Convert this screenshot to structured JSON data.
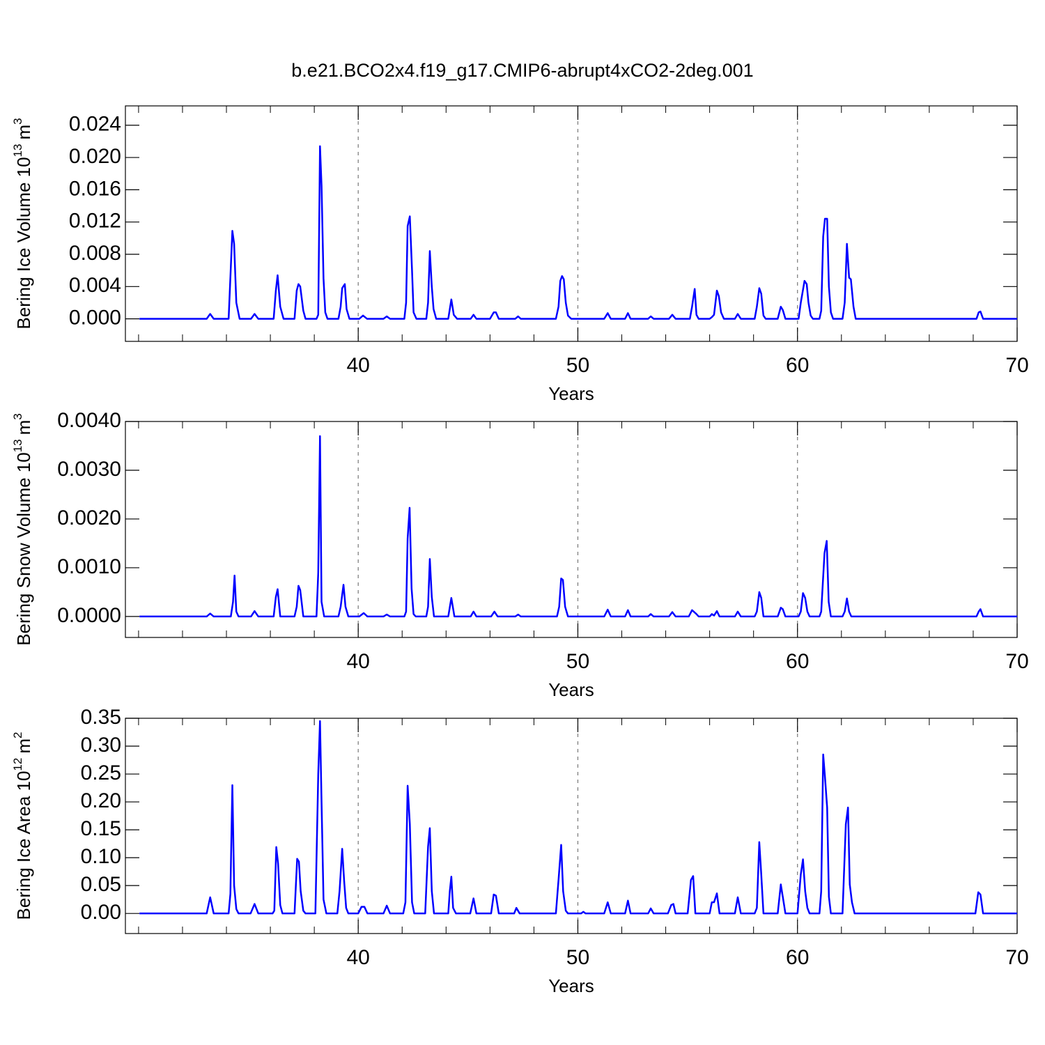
{
  "chart_data": [
    {
      "type": "line",
      "title": "b.e21.BCO2x4.f19_g17.CMIP6-abrupt4xCO2-2deg.001",
      "ylabel_parts": [
        {
          "text": "Bering Ice Volume 10"
        },
        {
          "text": "13",
          "sup": true
        },
        {
          "text": "m"
        },
        {
          "text": "3",
          "sup": true
        }
      ],
      "xlabel": "Years",
      "color": "#0000ff",
      "xgrid": true,
      "xlim": [
        29.4,
        70
      ],
      "xticks": [
        40,
        50,
        60,
        70
      ],
      "xminorticks": [
        30,
        32,
        34,
        36,
        38,
        42,
        44,
        46,
        48,
        52,
        54,
        56,
        58,
        62,
        64,
        66,
        68
      ],
      "ylim": [
        -0.0028,
        0.0264
      ],
      "yticks": [
        {
          "value": 0,
          "label": "0.000"
        },
        {
          "value": 0.004,
          "label": "0.004"
        },
        {
          "value": 0.008,
          "label": "0.008"
        },
        {
          "value": 0.012,
          "label": "0.012"
        },
        {
          "value": 0.016,
          "label": "0.016"
        },
        {
          "value": 0.02,
          "label": "0.020"
        },
        {
          "value": 0.024,
          "label": "0.024"
        }
      ],
      "x": [
        30.04,
        33.1,
        33.26,
        33.42,
        34.1,
        34.27,
        34.35,
        34.45,
        34.6,
        35.12,
        35.28,
        35.45,
        36.15,
        36.25,
        36.33,
        36.45,
        36.6,
        37.1,
        37.2,
        37.28,
        37.36,
        37.5,
        37.6,
        38.1,
        38.18,
        38.26,
        38.33,
        38.42,
        38.5,
        38.6,
        39.1,
        39.2,
        39.27,
        39.39,
        39.47,
        39.6,
        40.05,
        40.22,
        40.4,
        41.15,
        41.3,
        41.45,
        42.1,
        42.18,
        42.25,
        42.35,
        42.45,
        42.52,
        42.65,
        43.1,
        43.18,
        43.26,
        43.35,
        43.43,
        43.55,
        44.1,
        44.24,
        44.35,
        44.5,
        45.12,
        45.25,
        45.38,
        46.0,
        46.17,
        46.27,
        46.4,
        47.15,
        47.28,
        47.4,
        49.0,
        49.12,
        49.2,
        49.28,
        49.36,
        49.45,
        49.55,
        49.7,
        51.2,
        51.36,
        51.5,
        52.15,
        52.28,
        52.4,
        53.2,
        53.32,
        53.45,
        54.15,
        54.3,
        54.45,
        55.1,
        55.2,
        55.32,
        55.4,
        55.5,
        56.0,
        56.1,
        56.2,
        56.33,
        56.42,
        56.52,
        56.65,
        57.15,
        57.28,
        57.42,
        58.05,
        58.15,
        58.26,
        58.35,
        58.45,
        58.55,
        59.1,
        59.24,
        59.33,
        59.45,
        60.05,
        60.15,
        60.32,
        60.42,
        60.5,
        60.6,
        60.7,
        61.0,
        61.08,
        61.17,
        61.25,
        61.35,
        61.43,
        61.52,
        61.62,
        62.05,
        62.15,
        62.25,
        62.35,
        62.43,
        62.55,
        62.65,
        68.15,
        68.25,
        68.33,
        68.45,
        70
      ],
      "values": [
        0,
        0,
        0.0006,
        0,
        0,
        0.0109,
        0.0093,
        0.002,
        0,
        0,
        0.0006,
        0,
        0,
        0.0035,
        0.0054,
        0.0015,
        0,
        0,
        0.0035,
        0.0043,
        0.004,
        0.001,
        0,
        0,
        0.0005,
        0.0214,
        0.0165,
        0.005,
        0.0008,
        0,
        0,
        0.0015,
        0.0038,
        0.0043,
        0.0012,
        0,
        0,
        0.0004,
        0,
        0,
        0.0003,
        0,
        0,
        0.002,
        0.0115,
        0.0127,
        0.006,
        0.0008,
        0,
        0,
        0.002,
        0.0084,
        0.004,
        0.0012,
        0,
        0,
        0.0024,
        0.0005,
        0,
        0,
        0.0005,
        0,
        0,
        0.0008,
        0.0008,
        0,
        0,
        0.0003,
        0,
        0,
        0.0015,
        0.0047,
        0.0053,
        0.0049,
        0.002,
        0.0004,
        0,
        0,
        0.0007,
        0,
        0,
        0.0007,
        0,
        0,
        0.0003,
        0,
        0,
        0.0005,
        0,
        0,
        0.0015,
        0.0037,
        0.0005,
        0,
        0,
        0.0002,
        0.0005,
        0.0035,
        0.0028,
        0.0008,
        0,
        0,
        0.0006,
        0,
        0,
        0.0015,
        0.0038,
        0.0031,
        0.0004,
        0,
        0,
        0.0015,
        0.0011,
        0,
        0,
        0.002,
        0.0047,
        0.0043,
        0.002,
        0.0004,
        0,
        0,
        0.001,
        0.0102,
        0.0124,
        0.0124,
        0.004,
        0.0008,
        0,
        0,
        0.002,
        0.0093,
        0.0051,
        0.0049,
        0.0015,
        0,
        0,
        0.0008,
        0.0009,
        0,
        0
      ]
    },
    {
      "type": "line",
      "ylabel_parts": [
        {
          "text": "Bering Snow Volume 10"
        },
        {
          "text": "13",
          "sup": true
        },
        {
          "text": "m"
        },
        {
          "text": "3",
          "sup": true
        }
      ],
      "xlabel": "Years",
      "color": "#0000ff",
      "xgrid": true,
      "xlim": [
        29.4,
        70
      ],
      "xticks": [
        40,
        50,
        60,
        70
      ],
      "xminorticks": [
        30,
        32,
        34,
        36,
        38,
        42,
        44,
        46,
        48,
        52,
        54,
        56,
        58,
        62,
        64,
        66,
        68
      ],
      "ylim": [
        -0.00043,
        0.004
      ],
      "yticks": [
        {
          "value": 0,
          "label": "0.0000"
        },
        {
          "value": 0.001,
          "label": "0.0010"
        },
        {
          "value": 0.002,
          "label": "0.0020"
        },
        {
          "value": 0.003,
          "label": "0.0030"
        },
        {
          "value": 0.004,
          "label": "0.0040"
        }
      ],
      "x": [
        30.04,
        33.1,
        33.26,
        33.42,
        34.2,
        34.3,
        34.37,
        34.45,
        34.55,
        35.12,
        35.28,
        35.45,
        36.15,
        36.25,
        36.33,
        36.45,
        37.1,
        37.2,
        37.28,
        37.36,
        37.5,
        38.1,
        38.18,
        38.26,
        38.33,
        38.45,
        39.1,
        39.2,
        39.33,
        39.42,
        39.55,
        40.05,
        40.25,
        40.42,
        41.15,
        41.3,
        41.45,
        42.1,
        42.18,
        42.25,
        42.34,
        42.43,
        42.52,
        42.62,
        43.1,
        43.18,
        43.26,
        43.35,
        43.45,
        44.1,
        44.24,
        44.38,
        45.12,
        45.25,
        45.38,
        46.05,
        46.2,
        46.35,
        47.15,
        47.28,
        47.4,
        49.05,
        49.15,
        49.24,
        49.32,
        49.42,
        49.55,
        51.2,
        51.36,
        51.5,
        52.15,
        52.28,
        52.4,
        53.2,
        53.32,
        53.45,
        54.15,
        54.3,
        54.45,
        55.05,
        55.2,
        55.4,
        55.5,
        56.0,
        56.1,
        56.2,
        56.33,
        56.45,
        57.15,
        57.28,
        57.42,
        58.05,
        58.15,
        58.26,
        58.35,
        58.45,
        59.1,
        59.24,
        59.33,
        59.45,
        60.05,
        60.15,
        60.25,
        60.35,
        60.45,
        60.55,
        61.0,
        61.08,
        61.23,
        61.33,
        61.42,
        61.52,
        62.05,
        62.15,
        62.25,
        62.35,
        62.45,
        68.15,
        68.25,
        68.33,
        68.45,
        70
      ],
      "values": [
        0,
        0,
        6e-05,
        0,
        0,
        0.0003,
        0.00084,
        0.0001,
        0,
        0,
        0.00011,
        0,
        0,
        0.0004,
        0.00056,
        0,
        0,
        0.0002,
        0.00063,
        0.00054,
        0,
        0,
        0.0009,
        0.0037,
        0.0003,
        0,
        0,
        0.0002,
        0.00065,
        0.0002,
        0,
        0,
        7e-05,
        0,
        0,
        4e-05,
        0,
        0,
        0.0001,
        0.0016,
        0.00223,
        0.00057,
        5e-05,
        0,
        0,
        0.0002,
        0.00118,
        0.0004,
        0,
        0,
        0.00038,
        0,
        0,
        0.0001,
        0,
        0,
        0.0001,
        0,
        0,
        4e-05,
        0,
        0,
        0.0002,
        0.00078,
        0.00075,
        0.0002,
        0,
        0,
        0.00014,
        0,
        0,
        0.00013,
        0,
        0,
        5e-05,
        0,
        0,
        9e-05,
        0,
        0,
        0.00013,
        5e-05,
        0,
        0,
        5e-05,
        2e-05,
        0.00011,
        0,
        0,
        0.0001,
        0,
        0,
        0.0001,
        0.0005,
        0.00038,
        0,
        0,
        0.00018,
        0.00015,
        0,
        0,
        0.0001,
        0.00048,
        0.00038,
        0.0001,
        0,
        0,
        0.0001,
        0.0013,
        0.00155,
        0.0003,
        0,
        0,
        0.0001,
        0.00037,
        0.0001,
        0,
        0,
        0.0001,
        0.00015,
        0,
        0
      ]
    },
    {
      "type": "line",
      "ylabel_parts": [
        {
          "text": "Bering Ice Area 10"
        },
        {
          "text": "12",
          "sup": true
        },
        {
          "text": "m"
        },
        {
          "text": "2",
          "sup": true
        }
      ],
      "xlabel": "Years",
      "color": "#0000ff",
      "xgrid": true,
      "xlim": [
        29.4,
        70
      ],
      "xticks": [
        40,
        50,
        60,
        70
      ],
      "xminorticks": [
        30,
        32,
        34,
        36,
        38,
        42,
        44,
        46,
        48,
        52,
        54,
        56,
        58,
        62,
        64,
        66,
        68
      ],
      "ylim": [
        -0.036,
        0.35
      ],
      "yticks": [
        {
          "value": 0,
          "label": "0.00"
        },
        {
          "value": 0.05,
          "label": "0.05"
        },
        {
          "value": 0.1,
          "label": "0.10"
        },
        {
          "value": 0.15,
          "label": "0.15"
        },
        {
          "value": 0.2,
          "label": "0.20"
        },
        {
          "value": 0.25,
          "label": "0.25"
        },
        {
          "value": 0.3,
          "label": "0.30"
        },
        {
          "value": 0.35,
          "label": "0.35"
        }
      ],
      "x": [
        30.04,
        33.1,
        33.26,
        33.42,
        34.1,
        34.18,
        34.27,
        34.35,
        34.45,
        34.55,
        35.1,
        35.28,
        35.45,
        36.1,
        36.18,
        36.27,
        36.35,
        36.45,
        36.55,
        37.1,
        37.22,
        37.3,
        37.38,
        37.5,
        37.6,
        38.05,
        38.18,
        38.26,
        38.33,
        38.42,
        38.55,
        39.05,
        39.15,
        39.27,
        39.36,
        39.45,
        39.55,
        40.0,
        40.15,
        40.28,
        40.42,
        41.15,
        41.3,
        41.45,
        42.05,
        42.15,
        42.25,
        42.35,
        42.45,
        42.55,
        43.05,
        43.18,
        43.26,
        43.35,
        43.45,
        44.1,
        44.17,
        44.24,
        44.32,
        44.45,
        45.1,
        45.25,
        45.38,
        46.05,
        46.17,
        46.27,
        46.4,
        47.1,
        47.2,
        47.35,
        49.0,
        49.12,
        49.24,
        49.33,
        49.45,
        49.55,
        50.15,
        50.25,
        50.35,
        51.2,
        51.36,
        51.5,
        52.15,
        52.28,
        52.4,
        53.2,
        53.32,
        53.45,
        54.1,
        54.25,
        54.35,
        54.45,
        55.0,
        55.15,
        55.25,
        55.35,
        56.0,
        56.1,
        56.2,
        56.33,
        56.45,
        57.15,
        57.28,
        57.42,
        58.05,
        58.15,
        58.26,
        58.35,
        58.45,
        59.1,
        59.24,
        59.33,
        59.45,
        60.0,
        60.15,
        60.25,
        60.35,
        60.45,
        60.55,
        61.0,
        61.08,
        61.17,
        61.25,
        61.35,
        61.43,
        61.52,
        62.05,
        62.2,
        62.3,
        62.38,
        62.48,
        62.6,
        68.1,
        68.23,
        68.33,
        68.45,
        70
      ],
      "values": [
        0,
        0,
        0.029,
        0,
        0,
        0.035,
        0.23,
        0.05,
        0.008,
        0,
        0,
        0.017,
        0,
        0,
        0.005,
        0.119,
        0.09,
        0.015,
        0,
        0,
        0.098,
        0.093,
        0.04,
        0.005,
        0,
        0,
        0.25,
        0.345,
        0.2,
        0.025,
        0,
        0,
        0.04,
        0.116,
        0.058,
        0.01,
        0,
        0,
        0.012,
        0.012,
        0,
        0,
        0.014,
        0,
        0,
        0.02,
        0.229,
        0.16,
        0.02,
        0,
        0,
        0.12,
        0.153,
        0.04,
        0,
        0,
        0.04,
        0.066,
        0.01,
        0,
        0,
        0.027,
        0,
        0,
        0.034,
        0.032,
        0,
        0,
        0.01,
        0,
        0,
        0.06,
        0.123,
        0.04,
        0.005,
        0,
        0,
        0.003,
        0,
        0,
        0.02,
        0,
        0,
        0.023,
        0,
        0,
        0.009,
        0,
        0,
        0.015,
        0.017,
        0,
        0,
        0.06,
        0.067,
        0,
        0,
        0.02,
        0.02,
        0.036,
        0,
        0,
        0.029,
        0,
        0,
        0.01,
        0.128,
        0.07,
        0,
        0,
        0.052,
        0.03,
        0,
        0,
        0.07,
        0.097,
        0.04,
        0.01,
        0,
        0,
        0.04,
        0.285,
        0.245,
        0.19,
        0.03,
        0,
        0,
        0.16,
        0.19,
        0.052,
        0.02,
        0,
        0,
        0.038,
        0.034,
        0,
        0
      ]
    }
  ]
}
